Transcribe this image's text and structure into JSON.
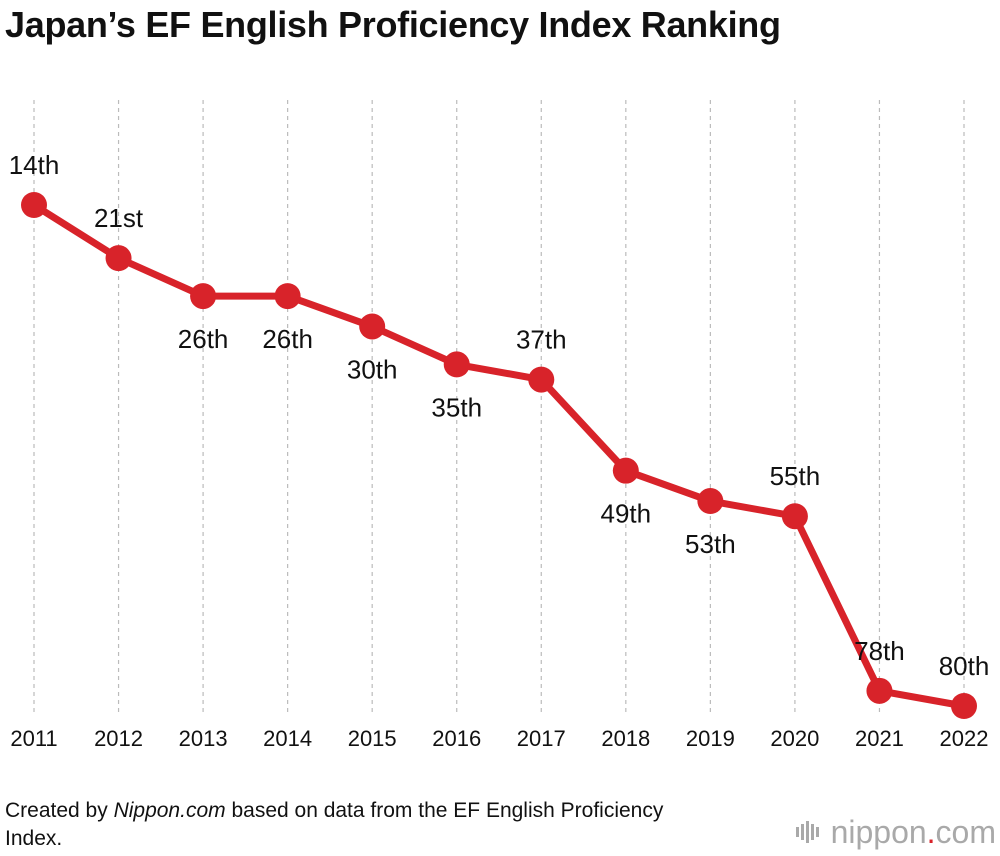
{
  "title": "Japan’s EF English Proficiency Index Ranking",
  "source": {
    "prefix": "Created by ",
    "site": "Nippon.com",
    "suffix": " based on data from the EF English Proficiency Index."
  },
  "logo": {
    "name": "nippon",
    "dot": ".",
    "tld": "com"
  },
  "colors": {
    "line": "#d8232a",
    "grid": "#bbbbbb",
    "text": "#111111",
    "logo_gray": "#a9a9a9"
  },
  "chart_data": {
    "type": "line",
    "title": "Japan’s EF English Proficiency Index Ranking",
    "xlabel": "",
    "ylabel": "",
    "y_inverted": true,
    "grid": "vertical dashed",
    "legend": "none",
    "x": [
      "2011",
      "2012",
      "2013",
      "2014",
      "2015",
      "2016",
      "2017",
      "2018",
      "2019",
      "2020",
      "2021",
      "2022"
    ],
    "values": [
      14,
      21,
      26,
      26,
      30,
      35,
      37,
      49,
      53,
      55,
      78,
      80
    ],
    "labels": [
      "14th",
      "21st",
      "26th",
      "26th",
      "30th",
      "35th",
      "37th",
      "49th",
      "53th",
      "55th",
      "78th",
      "80th"
    ],
    "label_positions": [
      "above",
      "above",
      "below",
      "below",
      "below",
      "below",
      "above",
      "below",
      "below",
      "above",
      "above",
      "above"
    ]
  }
}
